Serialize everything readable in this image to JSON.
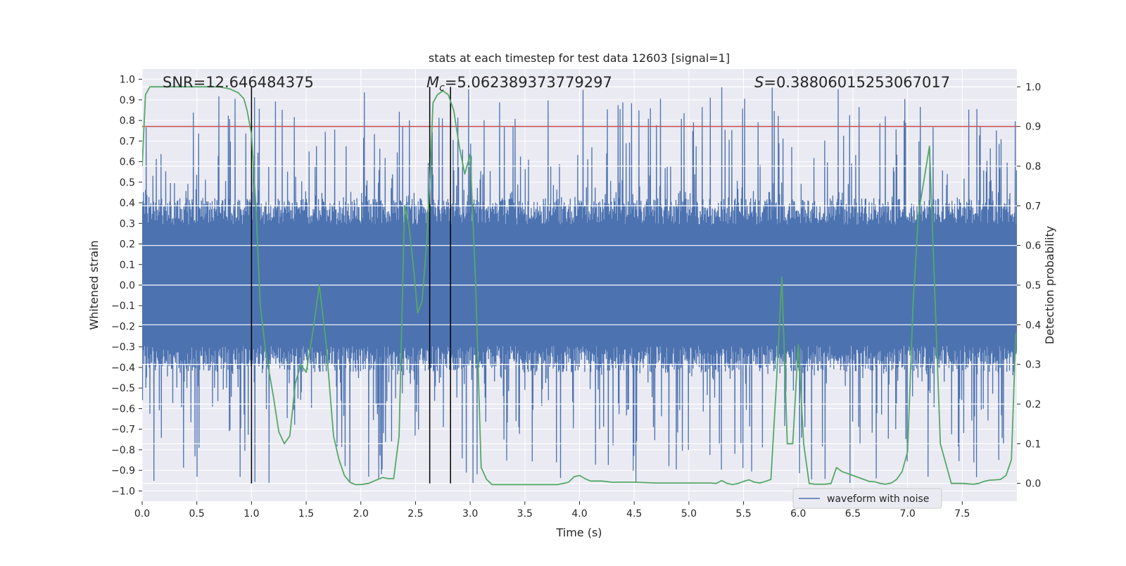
{
  "chart_data": {
    "type": "line",
    "title": "stats at each timestep for test data 12603 [signal=1]",
    "xlabel": "Time (s)",
    "ylabel": "Whitened strain",
    "y2label": "Detection probability",
    "xlim": [
      0.0,
      8.0
    ],
    "ylim": [
      -1.05,
      1.05
    ],
    "y2lim": [
      -0.045,
      1.045
    ],
    "x_ticks": [
      0.0,
      0.5,
      1.0,
      1.5,
      2.0,
      2.5,
      3.0,
      3.5,
      4.0,
      4.5,
      5.0,
      5.5,
      6.0,
      6.5,
      7.0,
      7.5
    ],
    "x_tick_labels": [
      "0.0",
      "0.5",
      "1.0",
      "1.5",
      "2.0",
      "2.5",
      "3.0",
      "3.5",
      "4.0",
      "4.5",
      "5.0",
      "5.5",
      "6.0",
      "6.5",
      "7.0",
      "7.5"
    ],
    "y_ticks": [
      1.0,
      0.9,
      0.8,
      0.7,
      0.6,
      0.5,
      0.4,
      0.3,
      0.2,
      0.1,
      0.0,
      -0.1,
      -0.2,
      -0.3,
      -0.4,
      -0.5,
      -0.6,
      -0.7,
      -0.8,
      -0.9,
      -1.0
    ],
    "y_tick_labels": [
      "1.0",
      "0.9",
      "0.8",
      "0.7",
      "0.6",
      "0.5",
      "0.4",
      "0.3",
      "0.2",
      "0.1",
      "0.0",
      "−0.1",
      "−0.2",
      "−0.3",
      "−0.4",
      "−0.5",
      "−0.6",
      "−0.7",
      "−0.8",
      "−0.9",
      "−1.0"
    ],
    "y2_ticks": [
      1.0,
      0.9,
      0.8,
      0.7,
      0.6,
      0.5,
      0.4,
      0.3,
      0.2,
      0.1,
      0.0
    ],
    "y2_tick_labels": [
      "1.0",
      "0.9",
      "0.8",
      "0.7",
      "0.6",
      "0.5",
      "0.4",
      "0.3",
      "0.2",
      "0.1",
      "0.0"
    ],
    "grid": true,
    "legend": {
      "placement": "lower-right",
      "entries": [
        "waveform with noise"
      ]
    },
    "annotations": {
      "snr": "SNR=12.646484375",
      "mc_symbol": "M",
      "mc_sub": "c",
      "mc_value": "=5.062389373779297",
      "s_symbol": "S",
      "s_value": "=0.38806015253067017"
    },
    "threshold": {
      "axis": "y2",
      "value": 0.9,
      "color": "#c44e52"
    },
    "vertical_lines": [
      1.0,
      2.63,
      2.82
    ],
    "series": [
      {
        "name": "waveform with noise",
        "axis": "y",
        "color": "#4c72b0",
        "kind": "noise-envelope",
        "core_amplitude": 0.42,
        "peak_amplitude": 0.97
      },
      {
        "axis": "y2",
        "color": "#55a868",
        "x": [
          0.0,
          0.03,
          0.07,
          0.12,
          0.2,
          0.3,
          0.4,
          0.5,
          0.6,
          0.7,
          0.8,
          0.88,
          0.93,
          0.96,
          1.0,
          1.04,
          1.08,
          1.13,
          1.2,
          1.25,
          1.3,
          1.35,
          1.4,
          1.45,
          1.5,
          1.56,
          1.62,
          1.68,
          1.75,
          1.8,
          1.85,
          1.9,
          1.95,
          2.0,
          2.07,
          2.13,
          2.2,
          2.25,
          2.3,
          2.35,
          2.4,
          2.44,
          2.48,
          2.52,
          2.56,
          2.6,
          2.63,
          2.66,
          2.7,
          2.75,
          2.8,
          2.85,
          2.9,
          2.95,
          3.0,
          3.05,
          3.1,
          3.15,
          3.2,
          3.3,
          3.4,
          3.5,
          3.6,
          3.7,
          3.8,
          3.85,
          3.9,
          3.95,
          4.0,
          4.05,
          4.1,
          4.2,
          4.3,
          4.4,
          4.5,
          4.6,
          4.7,
          4.8,
          4.9,
          5.0,
          5.1,
          5.2,
          5.25,
          5.3,
          5.35,
          5.4,
          5.45,
          5.5,
          5.55,
          5.6,
          5.65,
          5.7,
          5.75,
          5.8,
          5.85,
          5.9,
          5.95,
          6.0,
          6.05,
          6.1,
          6.15,
          6.2,
          6.25,
          6.3,
          6.35,
          6.4,
          6.5,
          6.6,
          6.65,
          6.7,
          6.75,
          6.8,
          6.85,
          6.9,
          6.95,
          7.0,
          7.05,
          7.1,
          7.2,
          7.3,
          7.4,
          7.5,
          7.6,
          7.65,
          7.7,
          7.75,
          7.8,
          7.85,
          7.9,
          7.95,
          7.99
        ],
        "y": [
          0.8,
          0.98,
          1.0,
          1.0,
          1.0,
          1.0,
          1.0,
          1.0,
          1.0,
          1.0,
          0.995,
          0.985,
          0.97,
          0.94,
          0.88,
          0.7,
          0.45,
          0.33,
          0.22,
          0.13,
          0.1,
          0.12,
          0.25,
          0.3,
          0.28,
          0.38,
          0.5,
          0.36,
          0.12,
          0.06,
          0.02,
          0.003,
          -0.003,
          -0.003,
          0.0,
          0.007,
          0.015,
          0.012,
          0.012,
          0.12,
          0.7,
          0.65,
          0.55,
          0.43,
          0.46,
          0.6,
          0.75,
          0.96,
          0.98,
          0.99,
          0.98,
          0.94,
          0.85,
          0.78,
          0.83,
          0.5,
          0.04,
          0.01,
          -0.003,
          -0.003,
          -0.003,
          -0.003,
          -0.003,
          -0.003,
          -0.003,
          0.0,
          0.003,
          0.017,
          0.02,
          0.012,
          0.006,
          0.006,
          0.003,
          0.003,
          0.003,
          0.002,
          0.001,
          0.001,
          0.001,
          0.001,
          0.001,
          0.001,
          0.0,
          0.007,
          0.0,
          -0.003,
          0.0,
          0.005,
          0.009,
          0.003,
          0.001,
          0.005,
          0.01,
          0.25,
          0.52,
          0.1,
          0.1,
          0.35,
          0.1,
          0.0,
          -0.002,
          -0.002,
          -0.002,
          0.0,
          0.04,
          0.03,
          0.02,
          0.01,
          0.005,
          0.004,
          0.0,
          -0.002,
          0.001,
          0.01,
          0.03,
          0.08,
          0.45,
          0.68,
          0.85,
          0.1,
          0.0,
          0.0,
          -0.002,
          0.0,
          0.005,
          0.008,
          0.009,
          0.01,
          0.02,
          0.06,
          0.38
        ]
      }
    ]
  }
}
